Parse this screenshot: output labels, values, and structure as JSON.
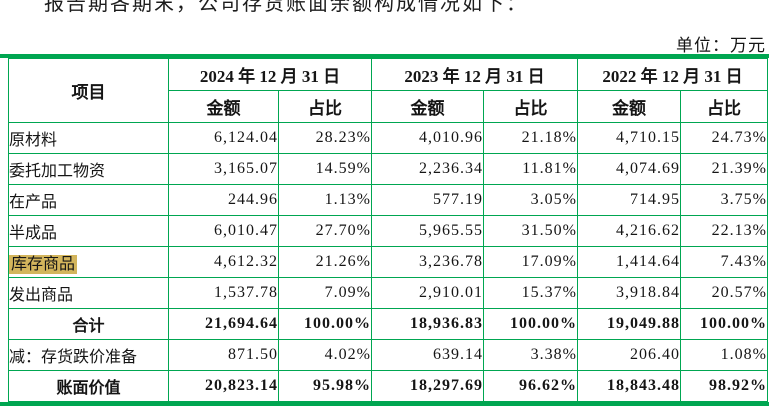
{
  "page": {
    "top_text": "报告期各期末，公司存货账面余额构成情况如下：",
    "unit_label": "单位：万元"
  },
  "colors": {
    "grid_green": "#00A651",
    "highlight_tan": "#D3B55C",
    "text": "#151515"
  },
  "table": {
    "header": {
      "item_label": "项目",
      "col_groups": [
        {
          "date": "2024 年 12 月 31 日",
          "amount_label": "金额",
          "ratio_label": "占比"
        },
        {
          "date": "2023 年 12 月 31 日",
          "amount_label": "金额",
          "ratio_label": "占比"
        },
        {
          "date": "2022 年 12 月 31 日",
          "amount_label": "金额",
          "ratio_label": "占比"
        }
      ]
    },
    "rows": [
      {
        "item": "原材料",
        "values": [
          "6,124.04",
          "28.23%",
          "4,010.96",
          "21.18%",
          "4,710.15",
          "24.73%"
        ]
      },
      {
        "item": "委托加工物资",
        "values": [
          "3,165.07",
          "14.59%",
          "2,236.34",
          "11.81%",
          "4,074.69",
          "21.39%"
        ]
      },
      {
        "item": "在产品",
        "values": [
          "244.96",
          "1.13%",
          "577.19",
          "3.05%",
          "714.95",
          "3.75%"
        ]
      },
      {
        "item": "半成品",
        "values": [
          "6,010.47",
          "27.70%",
          "5,965.55",
          "31.50%",
          "4,216.62",
          "22.13%"
        ]
      },
      {
        "item": "库存商品",
        "values": [
          "4,612.32",
          "21.26%",
          "3,236.78",
          "17.09%",
          "1,414.64",
          "7.43%"
        ],
        "highlight": true
      },
      {
        "item": "发出商品",
        "values": [
          "1,537.78",
          "7.09%",
          "2,910.01",
          "15.37%",
          "3,918.84",
          "20.57%"
        ]
      },
      {
        "item": "合计",
        "values": [
          "21,694.64",
          "100.00%",
          "18,936.83",
          "100.00%",
          "19,049.88",
          "100.00%"
        ],
        "bold": true,
        "center": true
      },
      {
        "item": "减：存货跌价准备",
        "values": [
          "871.50",
          "4.02%",
          "639.14",
          "3.38%",
          "206.40",
          "1.08%"
        ]
      },
      {
        "item": "账面价值",
        "values": [
          "20,823.14",
          "95.98%",
          "18,297.69",
          "96.62%",
          "18,843.48",
          "98.92%"
        ],
        "bold": true,
        "center": true
      }
    ]
  }
}
